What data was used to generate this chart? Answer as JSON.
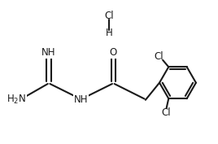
{
  "background_color": "#ffffff",
  "line_color": "#1a1a1a",
  "text_color": "#1a1a1a",
  "bond_width": 1.5,
  "figsize": [
    2.68,
    1.77
  ],
  "dpi": 100,
  "font_size": 8.5,
  "xlim": [
    0,
    10.0
  ],
  "ylim": [
    0,
    6.6
  ]
}
